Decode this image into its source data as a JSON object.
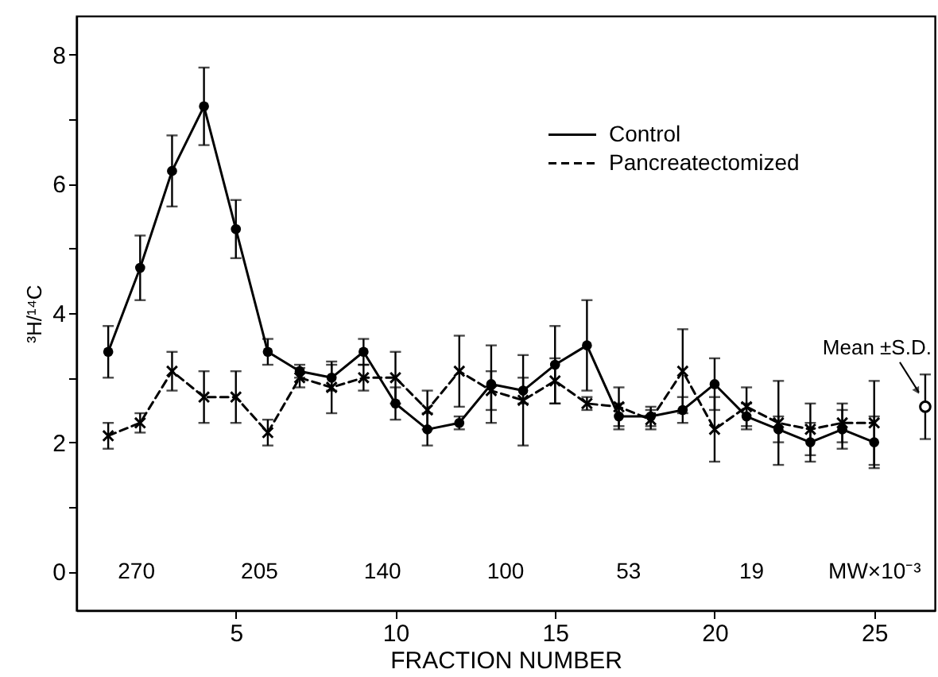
{
  "chart_data": {
    "type": "line",
    "xlabel": "FRACTION NUMBER",
    "ylabel": "³H/¹⁴C",
    "xlim": [
      0,
      26.9
    ],
    "xticks": [
      5,
      10,
      15,
      20,
      25
    ],
    "ylim": [
      -0.6,
      8.6
    ],
    "yticks": [
      0,
      {
        "value": 1,
        "label": null
      },
      2,
      {
        "value": 3,
        "label": null
      },
      4,
      {
        "value": 5,
        "label": null
      },
      6,
      {
        "value": 7,
        "label": null
      },
      8
    ],
    "x": [
      1,
      2,
      3,
      4,
      5,
      6,
      7,
      8,
      9,
      10,
      11,
      12,
      13,
      14,
      15,
      16,
      17,
      18,
      19,
      20,
      21,
      22,
      23,
      24,
      25
    ],
    "legend": "top right",
    "series": [
      {
        "name": "Control",
        "color": "#000000",
        "marker": "circle",
        "line_style": "solid",
        "values": [
          3.4,
          4.7,
          6.2,
          7.2,
          5.3,
          3.4,
          3.1,
          3.0,
          3.4,
          2.6,
          2.2,
          2.3,
          2.9,
          2.8,
          3.2,
          3.5,
          2.4,
          2.4,
          2.5,
          2.9,
          2.4,
          2.2,
          2.0,
          2.2,
          2.0
        ],
        "errors": [
          0.4,
          0.5,
          0.55,
          0.6,
          0.45,
          0.2,
          0.1,
          0.2,
          0.2,
          0.25,
          0.25,
          0.1,
          0.6,
          0.2,
          0.6,
          0.7,
          0.2,
          0.15,
          0.2,
          0.4,
          0.2,
          0.2,
          0.3,
          0.3,
          0.4
        ]
      },
      {
        "name": "Pancreatectomized",
        "color": "#000000",
        "marker": "cross",
        "line_style": "dashed",
        "values": [
          2.1,
          2.3,
          3.1,
          2.7,
          2.7,
          2.15,
          3.0,
          2.85,
          3.0,
          3.0,
          2.5,
          3.1,
          2.8,
          2.65,
          2.95,
          2.6,
          2.55,
          2.35,
          3.1,
          2.2,
          2.55,
          2.3,
          2.2,
          2.3,
          2.3
        ],
        "errors": [
          0.2,
          0.15,
          0.3,
          0.4,
          0.4,
          0.2,
          0.15,
          0.4,
          0.2,
          0.4,
          0.3,
          0.55,
          0.3,
          0.7,
          0.35,
          0.1,
          0.3,
          0.15,
          0.65,
          0.5,
          0.3,
          0.65,
          0.4,
          0.3,
          0.65
        ]
      },
      {
        "type": "scatter",
        "color": "#000000",
        "marker": "circle",
        "x": [
          26.6
        ],
        "values": [
          2.55
        ],
        "errors": [
          0.5
        ]
      }
    ],
    "annotations": [
      {
        "text": "Mean ±S.D.",
        "x": 26.6,
        "y": 2.55
      },
      "270",
      "205",
      "140",
      "100",
      "53",
      "19",
      "MW×10⁻³"
    ]
  }
}
